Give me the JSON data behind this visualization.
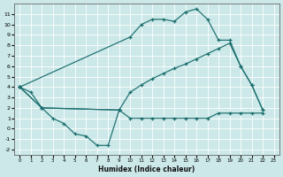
{
  "bg_color": "#cce8e8",
  "line_color": "#1a6e6e",
  "grid_color": "#ffffff",
  "xlabel": "Humidex (Indice chaleur)",
  "xlim": [
    -0.5,
    23.5
  ],
  "ylim": [
    -2.5,
    12.0
  ],
  "xticks": [
    0,
    1,
    2,
    3,
    4,
    5,
    6,
    7,
    8,
    9,
    10,
    11,
    12,
    13,
    14,
    15,
    16,
    17,
    18,
    19,
    20,
    21,
    22,
    23
  ],
  "yticks": [
    -2,
    -1,
    0,
    1,
    2,
    3,
    4,
    5,
    6,
    7,
    8,
    9,
    10,
    11
  ],
  "line_zigzag_x": [
    0,
    1,
    2,
    3,
    4,
    5,
    6,
    7,
    8,
    9
  ],
  "line_zigzag_y": [
    4.0,
    3.5,
    2.0,
    1.0,
    0.5,
    -0.5,
    -0.7,
    -1.6,
    -1.6,
    1.8
  ],
  "line_flat_x": [
    0,
    2,
    9,
    10,
    11,
    12,
    13,
    14,
    15,
    16,
    17,
    18,
    19,
    20,
    21,
    22
  ],
  "line_flat_y": [
    4.0,
    2.0,
    1.8,
    1.0,
    1.0,
    1.0,
    1.0,
    1.0,
    1.0,
    1.0,
    1.0,
    1.5,
    1.5,
    1.5,
    1.5,
    1.5
  ],
  "line_mid_x": [
    0,
    2,
    9,
    10,
    11,
    12,
    13,
    14,
    15,
    16,
    17,
    18,
    19,
    20,
    21,
    22
  ],
  "line_mid_y": [
    4.0,
    2.0,
    1.8,
    3.5,
    4.2,
    4.8,
    5.3,
    5.8,
    6.2,
    6.7,
    7.2,
    7.7,
    8.2,
    6.0,
    4.2,
    1.8
  ],
  "line_top_x": [
    0,
    10,
    11,
    12,
    13,
    14,
    15,
    16,
    17,
    18,
    19,
    20,
    21,
    22
  ],
  "line_top_y": [
    4.0,
    8.8,
    10.0,
    10.5,
    10.5,
    10.3,
    11.2,
    11.5,
    10.5,
    8.5,
    8.5,
    6.0,
    4.2,
    1.8
  ],
  "figsize": [
    3.2,
    2.0
  ],
  "dpi": 100
}
